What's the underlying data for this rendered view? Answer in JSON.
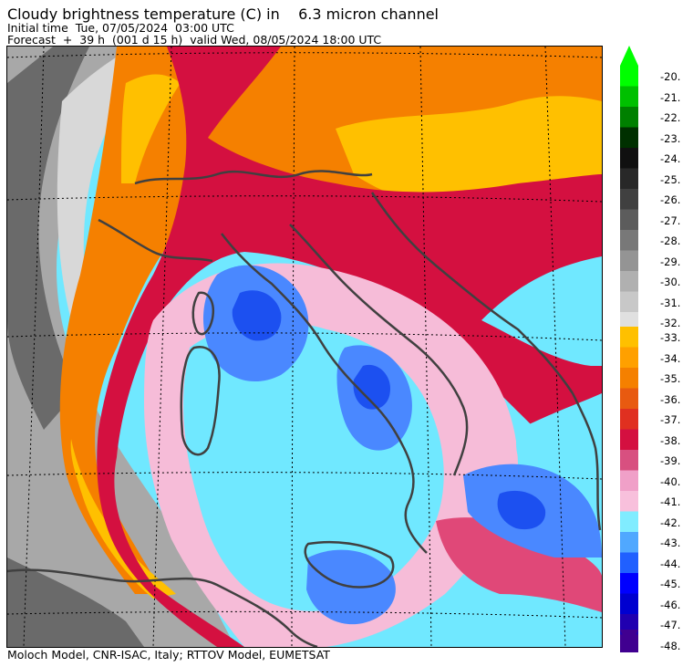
{
  "header": {
    "title": "Cloudy brightness temperature (C) in    6.3 micron channel",
    "initial_time": "Initial time  Tue, 07/05/2024  03:00 UTC",
    "forecast": "Forecast  +  39 h  (001 d 15 h)  valid Wed, 08/05/2024 18:00 UTC"
  },
  "footer": {
    "credit": "Moloch Model, CNR-ISAC, Italy; RTTOV Model, EUMETSAT"
  },
  "colorbar": {
    "upper": [
      {
        "label": "-20.",
        "color": "#00ff00"
      },
      {
        "label": "-21.",
        "color": "#00c000"
      },
      {
        "label": "-22.",
        "color": "#008000"
      },
      {
        "label": "-23.",
        "color": "#003000"
      },
      {
        "label": "-24.",
        "color": "#101010"
      },
      {
        "label": "-25.",
        "color": "#282828"
      },
      {
        "label": "-26.",
        "color": "#404040"
      },
      {
        "label": "-27.",
        "color": "#5c5c5c"
      },
      {
        "label": "-28.",
        "color": "#787878"
      },
      {
        "label": "-29.",
        "color": "#949494"
      },
      {
        "label": "-30.",
        "color": "#b0b0b0"
      },
      {
        "label": "-31.",
        "color": "#c8c8c8"
      },
      {
        "label": "-32.",
        "color": "#e0e0e0"
      }
    ],
    "lower": [
      {
        "label": "-33.",
        "color": "#ffc000"
      },
      {
        "label": "-34.",
        "color": "#ffa000"
      },
      {
        "label": "-35.",
        "color": "#f58000"
      },
      {
        "label": "-36.",
        "color": "#e85a10"
      },
      {
        "label": "-37.",
        "color": "#e03020"
      },
      {
        "label": "-38.",
        "color": "#d41040"
      },
      {
        "label": "-39.",
        "color": "#d85080"
      },
      {
        "label": "-40.",
        "color": "#f0a0c8"
      },
      {
        "label": "-41.",
        "color": "#f8c0dc"
      },
      {
        "label": "-42.",
        "color": "#80ecff"
      },
      {
        "label": "-43.",
        "color": "#50a8ff"
      },
      {
        "label": "-44.",
        "color": "#2060ff"
      },
      {
        "label": "-45.",
        "color": "#0000ff"
      },
      {
        "label": "-46.",
        "color": "#0000d0"
      },
      {
        "label": "-47.",
        "color": "#2000b0"
      },
      {
        "label": "-48.",
        "color": "#400090"
      }
    ]
  },
  "map_colors": {
    "background": "#70e8ff",
    "pink": "#f6bcd8",
    "magenta": "#e04878",
    "red": "#d41040",
    "orange": "#f58000",
    "yellow": "#ffc000",
    "blue": "#4a88ff",
    "deep_blue": "#1c50f0",
    "grey_light": "#d8d8d8",
    "grey": "#a8a8a8",
    "grey_dark": "#6a6a6a",
    "coast": "#404040"
  }
}
